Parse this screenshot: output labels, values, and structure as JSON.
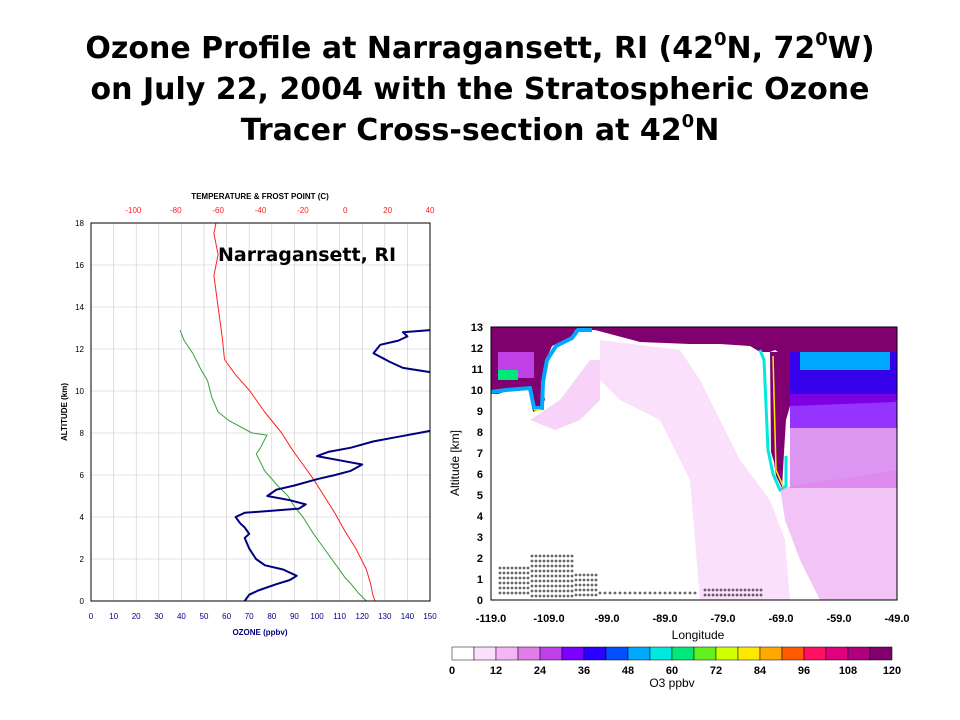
{
  "slide": {
    "title_line1": {
      "a": "Ozone Profile at  Narragansett, RI (42",
      "sup1": "0",
      "b": "N, 72",
      "sup2": "0",
      "c": "W)"
    },
    "title_line2": "on July 22, 2004 with the Stratospheric Ozone",
    "title_line3": {
      "a": "Tracer Cross-section at 42",
      "sup": "0",
      "b": "N"
    }
  },
  "colors": {
    "temperature": "#ff2020",
    "frost_point": "#3aa03a",
    "ozone": "#000080",
    "axis_title_blue": "#000080",
    "colorbar": [
      "#ffffff",
      "#fbe0fb",
      "#f5b4f5",
      "#e07de8",
      "#c040e8",
      "#7a00ff",
      "#2a00ff",
      "#0050ff",
      "#00a8ff",
      "#00e8e0",
      "#00e87a",
      "#60f020",
      "#d0ff00",
      "#ffe800",
      "#ffa800",
      "#ff5a00",
      "#ff1060",
      "#e00080",
      "#b00080",
      "#800070"
    ]
  },
  "chart_data": [
    {
      "type": "line",
      "annotation": "Narragansett, RI",
      "xlabel": "OZONE (ppbv)",
      "x2label": "TEMPERATURE & FROST POINT (C)",
      "ylabel": "ALTITUDE (km)",
      "xlim": [
        0,
        150
      ],
      "x2lim": [
        -120,
        40
      ],
      "ylim": [
        0,
        18
      ],
      "xticks": [
        "0",
        "10",
        "20",
        "30",
        "40",
        "50",
        "60",
        "70",
        "80",
        "90",
        "100",
        "110",
        "120",
        "130",
        "140",
        "150"
      ],
      "x2ticks": [
        "-100",
        "-80",
        "-60",
        "-40",
        "-20",
        "0",
        "20",
        "40"
      ],
      "yticks": [
        "0",
        "2",
        "4",
        "6",
        "8",
        "10",
        "12",
        "14",
        "16",
        "18"
      ],
      "grid": true,
      "series": [
        {
          "axis": "x2",
          "points": [
            [
              14,
              0
            ],
            [
              13,
              0.3
            ],
            [
              12,
              0.8
            ],
            [
              10,
              1.5
            ],
            [
              5,
              2.5
            ],
            [
              0,
              3.3
            ],
            [
              -5,
              4.2
            ],
            [
              -10,
              5
            ],
            [
              -15,
              5.8
            ],
            [
              -20,
              6.5
            ],
            [
              -25,
              7.2
            ],
            [
              -30,
              8
            ],
            [
              -38,
              9
            ],
            [
              -45,
              10
            ],
            [
              -52,
              10.8
            ],
            [
              -57,
              11.5
            ],
            [
              -58,
              12.5
            ],
            [
              -60,
              14
            ],
            [
              -62,
              15.5
            ],
            [
              -60,
              16.5
            ],
            [
              -62,
              17.5
            ],
            [
              -61,
              18
            ]
          ]
        },
        {
          "axis": "x2",
          "points": [
            [
              10,
              0
            ],
            [
              6,
              0.4
            ],
            [
              2,
              0.9
            ],
            [
              0,
              1.1
            ],
            [
              -5,
              1.8
            ],
            [
              -10,
              2.5
            ],
            [
              -15,
              3.2
            ],
            [
              -20,
              4
            ],
            [
              -24,
              4.5
            ],
            [
              -27,
              5
            ],
            [
              -32,
              5.5
            ],
            [
              -38,
              6.2
            ],
            [
              -42,
              7
            ],
            [
              -40,
              7.3
            ],
            [
              -37,
              7.9
            ],
            [
              -44,
              8
            ],
            [
              -55,
              8.6
            ],
            [
              -60,
              9
            ],
            [
              -63,
              9.7
            ],
            [
              -65,
              10.5
            ],
            [
              -68,
              11
            ],
            [
              -72,
              11.8
            ],
            [
              -76,
              12.4
            ],
            [
              -78,
              12.9
            ]
          ]
        },
        {
          "axis": "x",
          "points": [
            [
              68,
              0
            ],
            [
              70,
              0.3
            ],
            [
              74,
              0.5
            ],
            [
              82,
              0.8
            ],
            [
              88,
              1
            ],
            [
              91,
              1.2
            ],
            [
              85,
              1.5
            ],
            [
              77,
              1.7
            ],
            [
              73,
              2
            ],
            [
              70,
              2.5
            ],
            [
              68,
              3
            ],
            [
              70,
              3.2
            ],
            [
              68,
              3.5
            ],
            [
              66,
              3.7
            ],
            [
              64,
              4
            ],
            [
              68,
              4.2
            ],
            [
              80,
              4.3
            ],
            [
              92,
              4.4
            ],
            [
              95,
              4.6
            ],
            [
              88,
              4.8
            ],
            [
              78,
              5
            ],
            [
              82,
              5.3
            ],
            [
              90,
              5.5
            ],
            [
              100,
              5.8
            ],
            [
              108,
              6
            ],
            [
              115,
              6.2
            ],
            [
              120,
              6.5
            ],
            [
              110,
              6.7
            ],
            [
              100,
              6.9
            ],
            [
              105,
              7.1
            ],
            [
              115,
              7.3
            ],
            [
              125,
              7.6
            ],
            [
              135,
              7.8
            ],
            [
              145,
              8
            ],
            [
              150,
              8.1
            ]
          ]
        },
        {
          "axis": "x",
          "points": [
            [
              150,
              10.9
            ],
            [
              138,
              11.1
            ],
            [
              132,
              11.4
            ],
            [
              125,
              11.8
            ],
            [
              128,
              12.2
            ],
            [
              136,
              12.4
            ],
            [
              140,
              12.6
            ],
            [
              138,
              12.8
            ],
            [
              150,
              12.9
            ]
          ]
        }
      ]
    },
    {
      "type": "heatmap",
      "xlabel": "Longitude",
      "ylabel": "Altitude [km]",
      "xlim": [
        -119,
        -49
      ],
      "ylim": [
        0,
        13
      ],
      "xticks": [
        "-119.0",
        "-109.0",
        "-99.0",
        "-89.0",
        "-79.0",
        "-69.0",
        "-59.0",
        "-49.0"
      ],
      "yticks": [
        "0",
        "1",
        "2",
        "3",
        "4",
        "5",
        "6",
        "7",
        "8",
        "9",
        "10",
        "11",
        "12",
        "13"
      ],
      "colorbar_label": "O3 ppbv",
      "colorbar_ticks": [
        "0",
        "12",
        "24",
        "36",
        "48",
        "60",
        "72",
        "84",
        "96",
        "108",
        "120"
      ],
      "colorbar_range": [
        0,
        120
      ],
      "colorbar_step": 6
    }
  ]
}
